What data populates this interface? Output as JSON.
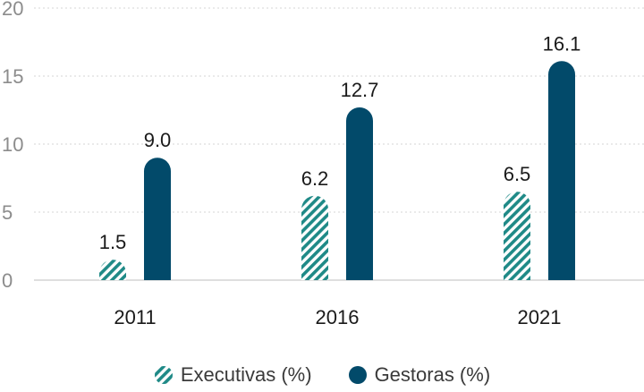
{
  "chart_data": {
    "type": "bar",
    "categories": [
      "2011",
      "2016",
      "2021"
    ],
    "series": [
      {
        "name": "Executivas (%)",
        "values": [
          1.5,
          6.2,
          6.5
        ],
        "color": "#1f8a87",
        "pattern": "hatched"
      },
      {
        "name": "Gestoras (%)",
        "values": [
          9.0,
          12.7,
          16.1
        ],
        "color": "#024a6a",
        "pattern": "solid"
      }
    ],
    "data_labels": [
      [
        "1.5",
        "6.2",
        "6.5"
      ],
      [
        "9.0",
        "12.7",
        "16.1"
      ]
    ],
    "yticks": [
      "0",
      "5",
      "10",
      "15",
      "20"
    ],
    "ylim": [
      0,
      20
    ],
    "grid": true,
    "legend_position": "bottom",
    "title": "",
    "xlabel": "",
    "ylabel": ""
  }
}
